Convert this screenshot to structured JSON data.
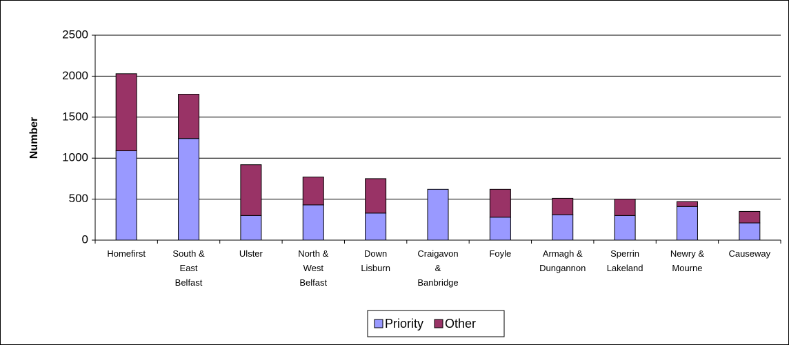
{
  "chart_data": {
    "type": "stacked_bar",
    "y_label": "Number",
    "categories": [
      "Homefirst",
      "South & East Belfast",
      "Ulster",
      "North & West Belfast",
      "Down Lisburn",
      "Craigavon & Banbridge",
      "Foyle",
      "Armagh & Dungannon",
      "Sperrin Lakeland",
      "Newry & Mourne",
      "Causeway"
    ],
    "series": [
      {
        "name": "Priority",
        "color": "#9999ff",
        "values": [
          1090,
          1240,
          300,
          430,
          330,
          620,
          280,
          310,
          300,
          410,
          210
        ]
      },
      {
        "name": "Other",
        "color": "#993366",
        "values": [
          940,
          540,
          620,
          340,
          420,
          0,
          340,
          200,
          200,
          60,
          140
        ]
      }
    ],
    "ylim": [
      0,
      2500
    ],
    "yticks": [
      0,
      500,
      1000,
      1500,
      2000,
      2500
    ],
    "grid": true,
    "legend": "bottom"
  }
}
